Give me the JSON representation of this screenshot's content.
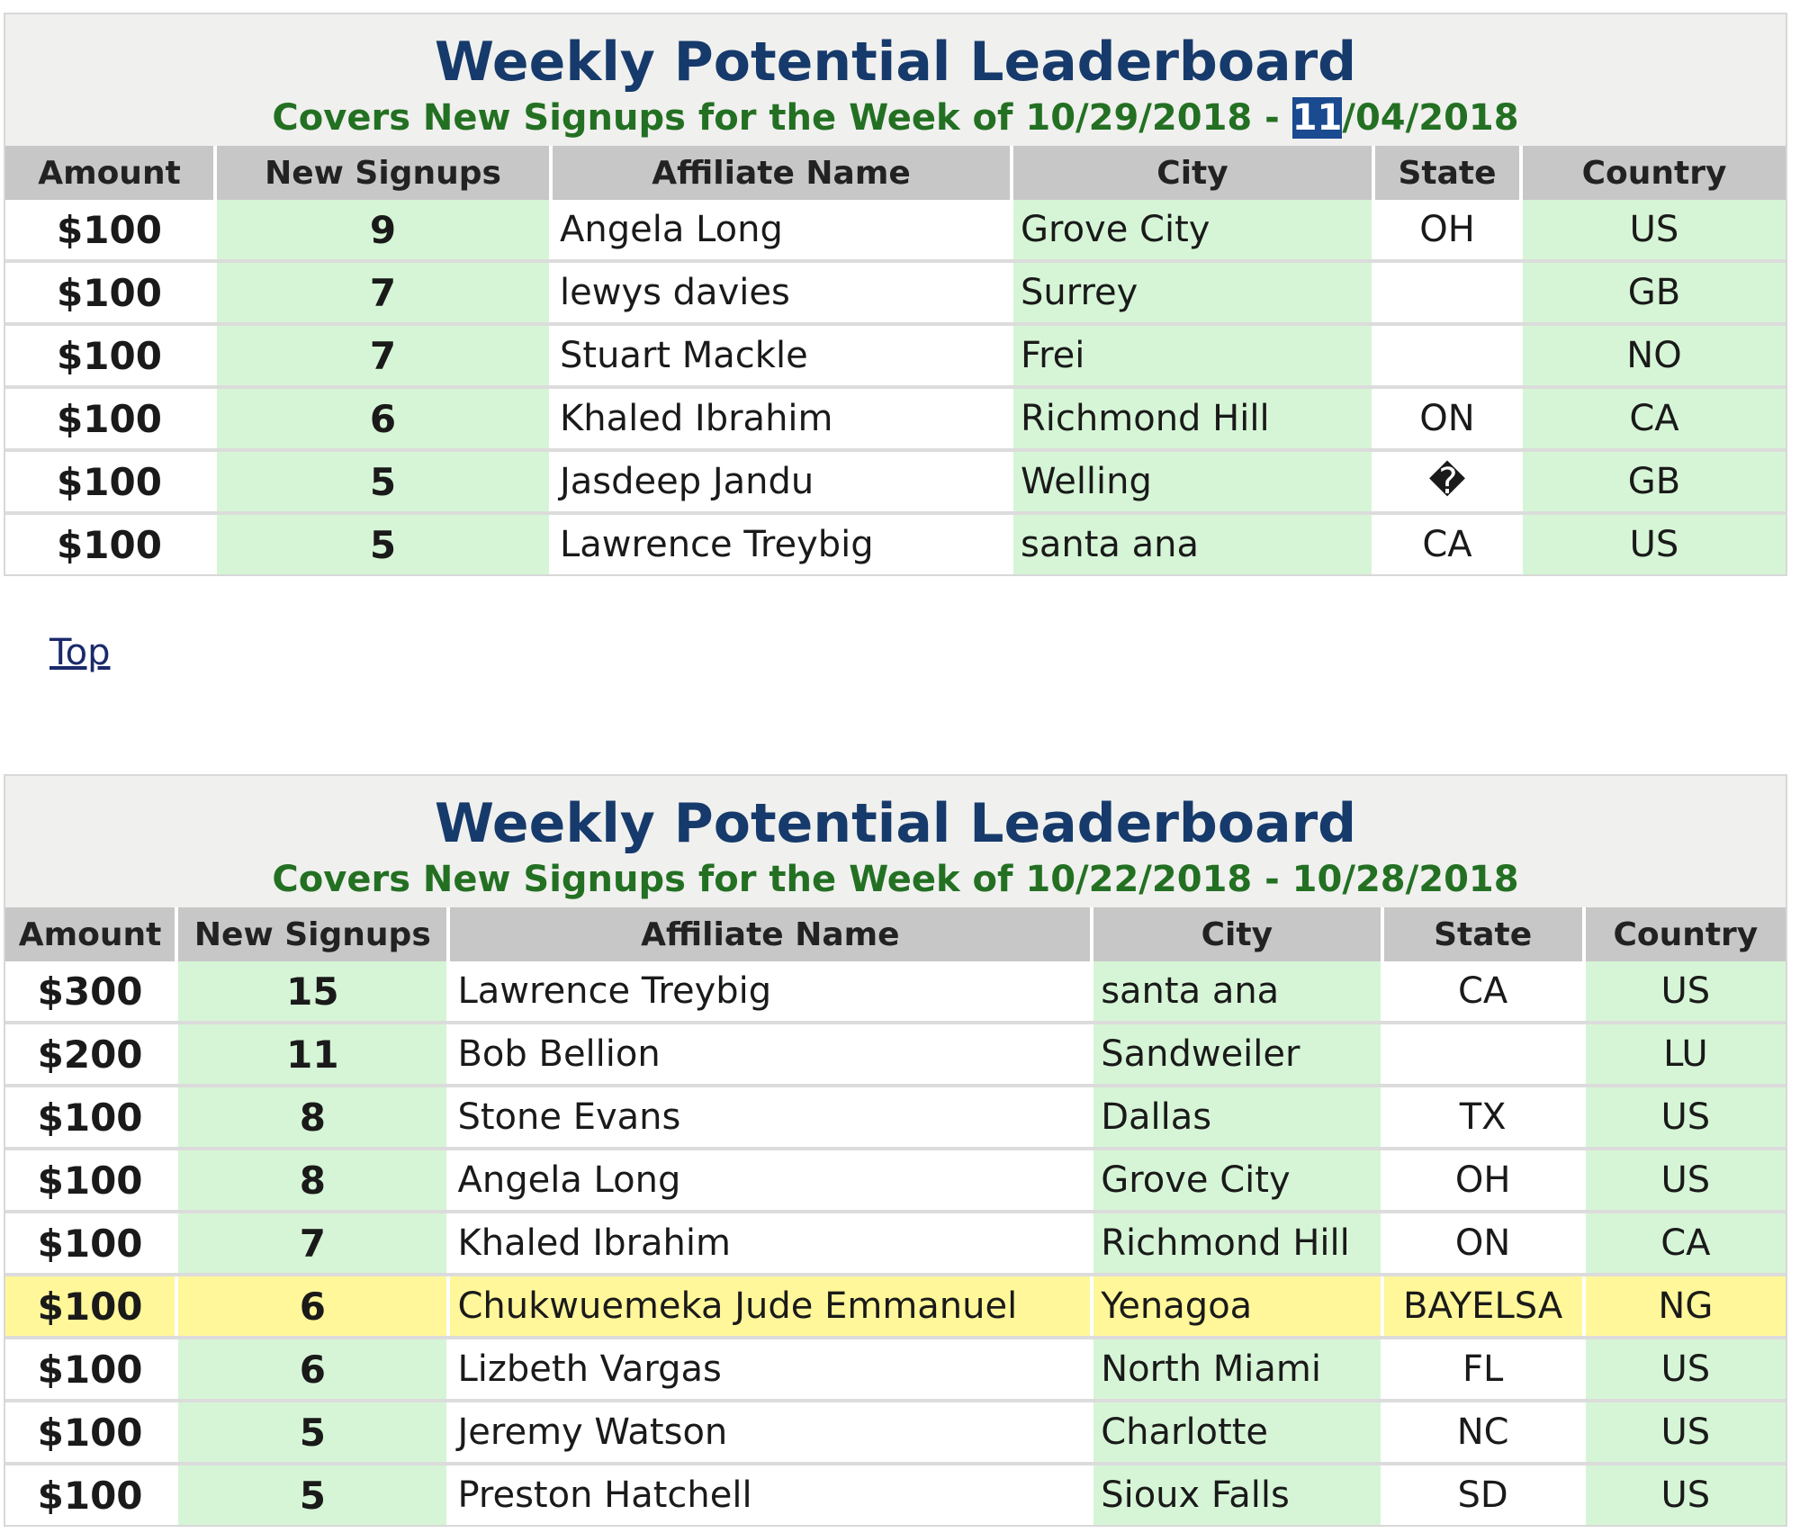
{
  "boards": [
    {
      "title": "Weekly Potential Leaderboard",
      "subtitle_prefix": "Covers New Signups for the Week of 10/29/2018 - ",
      "subtitle_highlight": "11",
      "subtitle_suffix": "/04/2018",
      "columns": [
        "Amount",
        "New Signups",
        "Affiliate Name",
        "City",
        "State",
        "Country"
      ],
      "rows": [
        {
          "amount": "$100",
          "signups": "9",
          "name": "Angela Long",
          "city": "Grove City",
          "state": "OH",
          "country": "US"
        },
        {
          "amount": "$100",
          "signups": "7",
          "name": "lewys davies",
          "city": "Surrey",
          "state": "",
          "country": "GB"
        },
        {
          "amount": "$100",
          "signups": "7",
          "name": "Stuart Mackle",
          "city": "Frei",
          "state": "",
          "country": "NO"
        },
        {
          "amount": "$100",
          "signups": "6",
          "name": "Khaled Ibrahim",
          "city": "Richmond Hill",
          "state": "ON",
          "country": "CA"
        },
        {
          "amount": "$100",
          "signups": "5",
          "name": "Jasdeep Jandu",
          "city": "Welling",
          "state": "�",
          "country": "GB"
        },
        {
          "amount": "$100",
          "signups": "5",
          "name": "Lawrence Treybig",
          "city": "santa ana",
          "state": "CA",
          "country": "US"
        }
      ]
    },
    {
      "title": "Weekly Potential Leaderboard",
      "subtitle_prefix": "Covers New Signups for the Week of 10/22/2018 - 10/28/2018",
      "subtitle_highlight": "",
      "subtitle_suffix": "",
      "columns": [
        "Amount",
        "New Signups",
        "Affiliate Name",
        "City",
        "State",
        "Country"
      ],
      "rows": [
        {
          "amount": "$300",
          "signups": "15",
          "name": "Lawrence Treybig",
          "city": "santa ana",
          "state": "CA",
          "country": "US"
        },
        {
          "amount": "$200",
          "signups": "11",
          "name": "Bob Bellion",
          "city": "Sandweiler",
          "state": "",
          "country": "LU"
        },
        {
          "amount": "$100",
          "signups": "8",
          "name": "Stone Evans",
          "city": "Dallas",
          "state": "TX",
          "country": "US"
        },
        {
          "amount": "$100",
          "signups": "8",
          "name": "Angela Long",
          "city": "Grove City",
          "state": "OH",
          "country": "US"
        },
        {
          "amount": "$100",
          "signups": "7",
          "name": "Khaled Ibrahim",
          "city": "Richmond Hill",
          "state": "ON",
          "country": "CA"
        },
        {
          "amount": "$100",
          "signups": "6",
          "name": "Chukwuemeka Jude Emmanuel",
          "city": "Yenagoa",
          "state": "BAYELSA",
          "country": "NG",
          "highlighted": true
        },
        {
          "amount": "$100",
          "signups": "6",
          "name": "Lizbeth Vargas",
          "city": "North Miami",
          "state": "FL",
          "country": "US"
        },
        {
          "amount": "$100",
          "signups": "5",
          "name": "Jeremy Watson",
          "city": "Charlotte",
          "state": "NC",
          "country": "US"
        },
        {
          "amount": "$100",
          "signups": "5",
          "name": "Preston Hatchell",
          "city": "Sioux Falls",
          "state": "SD",
          "country": "US"
        }
      ]
    }
  ],
  "top_link": "Top",
  "colors": {
    "title": "#163a6b",
    "subtitle": "#237023",
    "header_bg": "#c7c7c7",
    "green_cell": "#d6f5d6",
    "highlight_row": "#fff799",
    "selection": "#1a4a90"
  }
}
